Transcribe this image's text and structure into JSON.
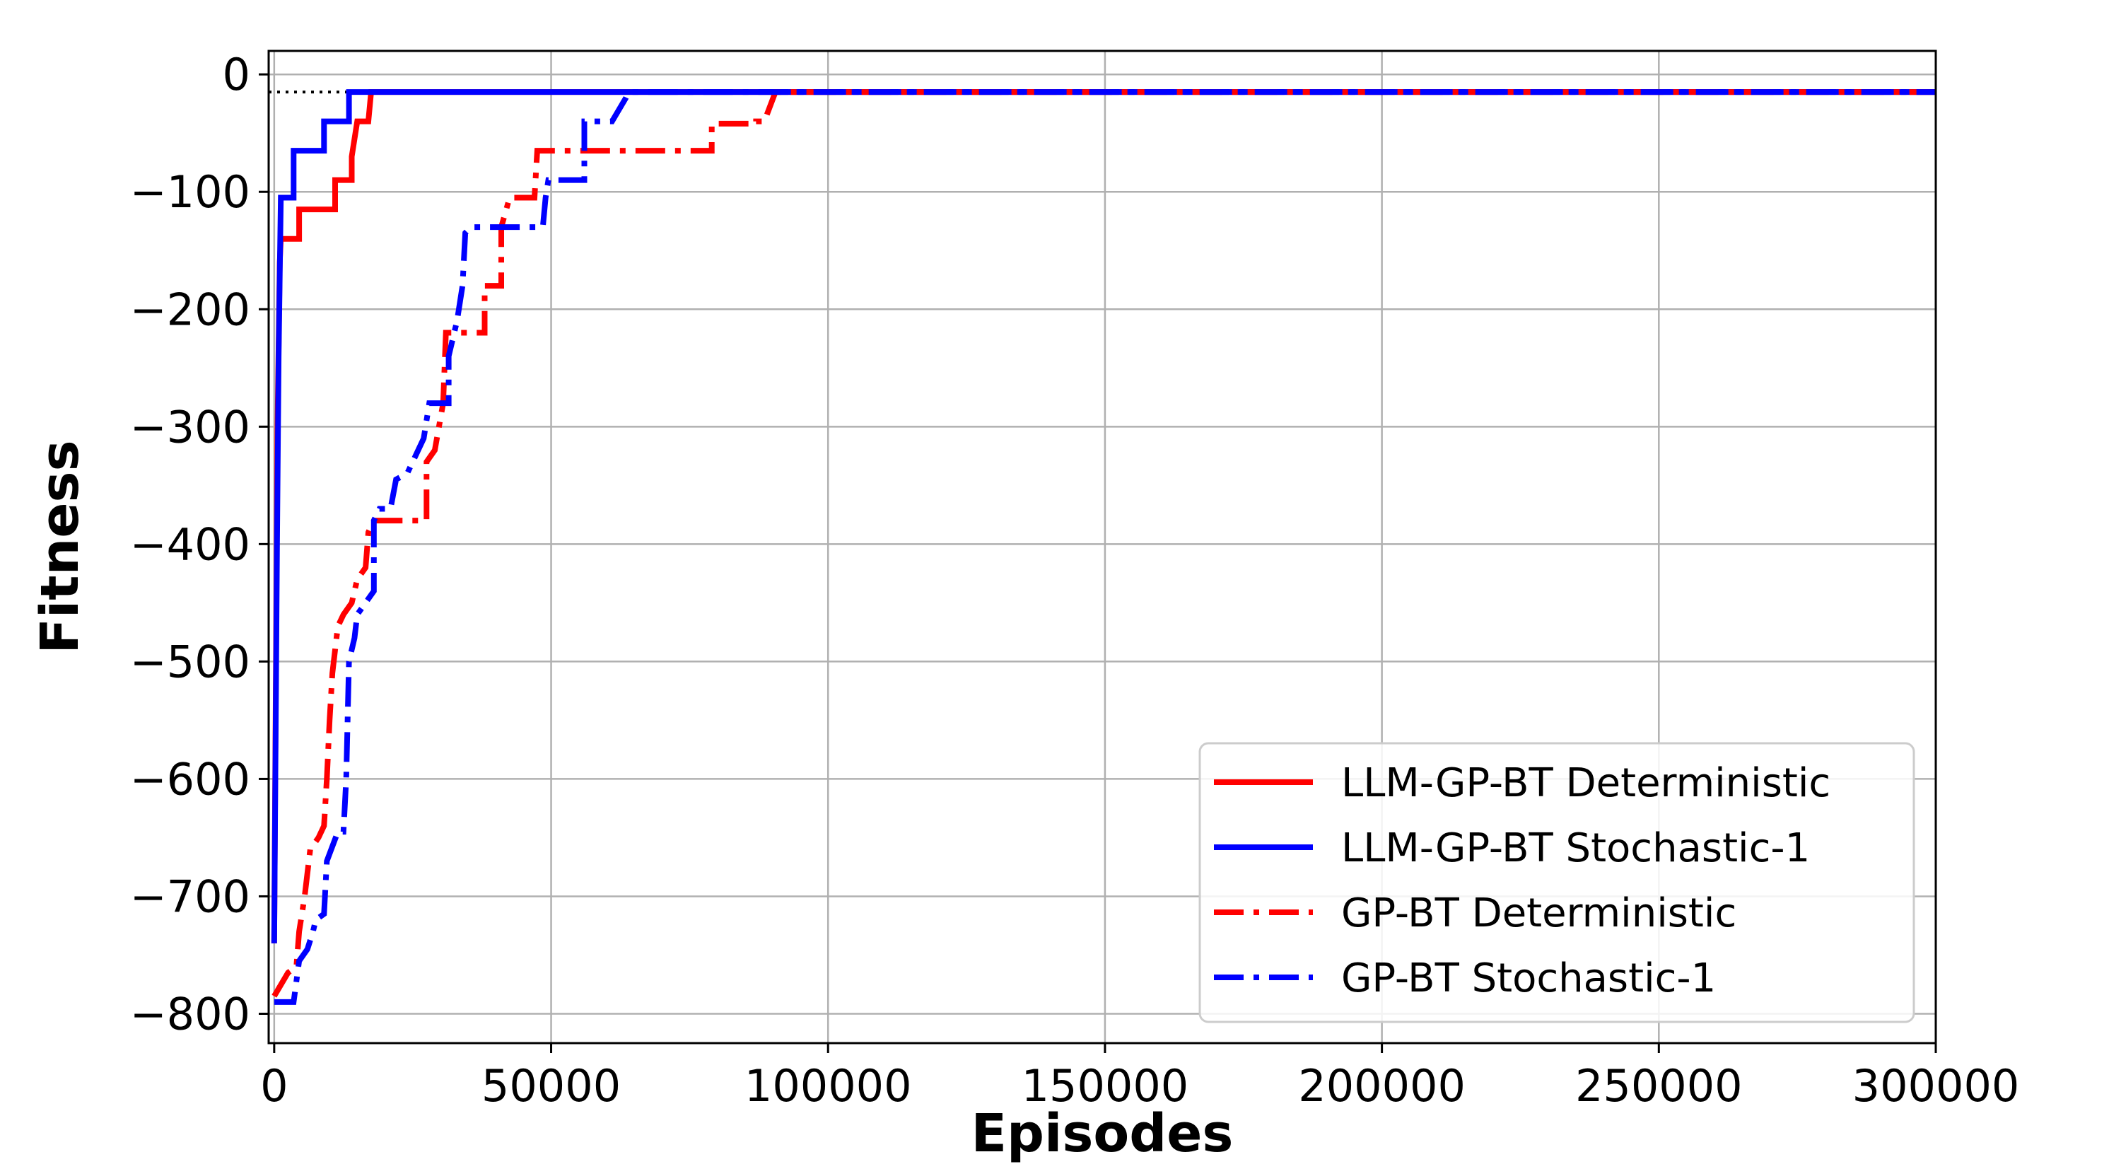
{
  "chart_data": {
    "type": "line",
    "xlabel": "Episodes",
    "ylabel": "Fitness",
    "xlim": [
      -1000,
      300000
    ],
    "ylim": [
      -825,
      20
    ],
    "xticks": [
      0,
      50000,
      100000,
      150000,
      200000,
      250000,
      300000
    ],
    "xtick_labels": [
      "0",
      "50000",
      "100000",
      "150000",
      "200000",
      "250000",
      "300000"
    ],
    "yticks": [
      0,
      -100,
      -200,
      -300,
      -400,
      -500,
      -600,
      -700,
      -800
    ],
    "ytick_labels": [
      "0",
      "−100",
      "−200",
      "−300",
      "−400",
      "−500",
      "−600",
      "−700",
      "−800"
    ],
    "grid": true,
    "legend_position": "lower-right",
    "reference_line": {
      "y": -15,
      "style": "dotted",
      "color": "#000000"
    },
    "series": [
      {
        "name": "LLM-GP-BT Deterministic",
        "color": "#ff0000",
        "style": "solid",
        "points": [
          [
            0,
            -740
          ],
          [
            600,
            -300
          ],
          [
            1000,
            -160
          ],
          [
            1200,
            -140
          ],
          [
            4500,
            -140
          ],
          [
            4500,
            -115
          ],
          [
            11000,
            -115
          ],
          [
            11000,
            -90
          ],
          [
            14000,
            -90
          ],
          [
            14000,
            -70
          ],
          [
            15000,
            -40
          ],
          [
            17000,
            -40
          ],
          [
            17500,
            -15
          ],
          [
            300000,
            -15
          ]
        ]
      },
      {
        "name": "LLM-GP-BT Stochastic-1",
        "color": "#0000ff",
        "style": "solid",
        "points": [
          [
            0,
            -740
          ],
          [
            500,
            -400
          ],
          [
            800,
            -240
          ],
          [
            1000,
            -170
          ],
          [
            1200,
            -105
          ],
          [
            3500,
            -105
          ],
          [
            3500,
            -65
          ],
          [
            9000,
            -65
          ],
          [
            9000,
            -40
          ],
          [
            13500,
            -40
          ],
          [
            13500,
            -15
          ],
          [
            300000,
            -15
          ]
        ]
      },
      {
        "name": "GP-BT Deterministic",
        "color": "#ff0000",
        "style": "dashdot",
        "points": [
          [
            0,
            -785
          ],
          [
            2500,
            -765
          ],
          [
            4000,
            -760
          ],
          [
            4500,
            -730
          ],
          [
            5500,
            -700
          ],
          [
            6500,
            -660
          ],
          [
            8000,
            -650
          ],
          [
            9000,
            -640
          ],
          [
            9500,
            -600
          ],
          [
            10000,
            -550
          ],
          [
            10500,
            -510
          ],
          [
            11500,
            -470
          ],
          [
            12500,
            -460
          ],
          [
            14000,
            -450
          ],
          [
            15000,
            -430
          ],
          [
            16500,
            -420
          ],
          [
            17000,
            -390
          ],
          [
            18000,
            -380
          ],
          [
            27500,
            -380
          ],
          [
            27500,
            -330
          ],
          [
            29000,
            -320
          ],
          [
            30500,
            -280
          ],
          [
            31000,
            -220
          ],
          [
            38000,
            -220
          ],
          [
            38000,
            -180
          ],
          [
            41000,
            -180
          ],
          [
            41000,
            -130
          ],
          [
            42500,
            -105
          ],
          [
            47000,
            -105
          ],
          [
            47500,
            -65
          ],
          [
            63000,
            -65
          ],
          [
            63000,
            -65
          ],
          [
            79000,
            -65
          ],
          [
            79000,
            -42
          ],
          [
            87000,
            -42
          ],
          [
            87000,
            -40
          ],
          [
            88500,
            -40
          ],
          [
            90500,
            -15
          ],
          [
            300000,
            -15
          ]
        ]
      },
      {
        "name": "GP-BT Stochastic-1",
        "color": "#0000ff",
        "style": "dashdot",
        "points": [
          [
            0,
            -790
          ],
          [
            3500,
            -790
          ],
          [
            4500,
            -755
          ],
          [
            6000,
            -745
          ],
          [
            7000,
            -730
          ],
          [
            7500,
            -720
          ],
          [
            9000,
            -715
          ],
          [
            9500,
            -670
          ],
          [
            11500,
            -645
          ],
          [
            12500,
            -645
          ],
          [
            13000,
            -600
          ],
          [
            13500,
            -500
          ],
          [
            14500,
            -480
          ],
          [
            15000,
            -460
          ],
          [
            18000,
            -440
          ],
          [
            18000,
            -380
          ],
          [
            19000,
            -370
          ],
          [
            21000,
            -370
          ],
          [
            22000,
            -345
          ],
          [
            24000,
            -340
          ],
          [
            25000,
            -330
          ],
          [
            27000,
            -310
          ],
          [
            28000,
            -280
          ],
          [
            31500,
            -280
          ],
          [
            31500,
            -240
          ],
          [
            33000,
            -210
          ],
          [
            34000,
            -180
          ],
          [
            34500,
            -135
          ],
          [
            35500,
            -130
          ],
          [
            48500,
            -130
          ],
          [
            49000,
            -105
          ],
          [
            49500,
            -90
          ],
          [
            56000,
            -90
          ],
          [
            56000,
            -40
          ],
          [
            61000,
            -40
          ],
          [
            63500,
            -20
          ],
          [
            64000,
            -15
          ],
          [
            300000,
            -15
          ]
        ]
      }
    ]
  }
}
